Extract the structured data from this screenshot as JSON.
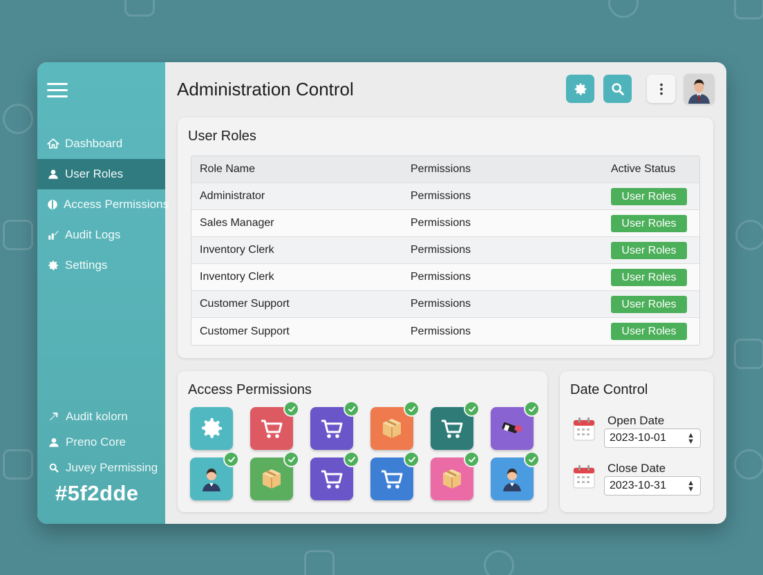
{
  "colors": {
    "sidebar": "#57b2b6",
    "sidebar_active": "#2f7b80",
    "accent_teal": "#4fb3bb",
    "status_green": "#4caf5a",
    "background": "#4f8a93"
  },
  "sidebar": {
    "menu_icon": "hamburger-icon",
    "items": [
      {
        "label": "Dashboard",
        "icon": "home-icon",
        "active": false
      },
      {
        "label": "User Roles",
        "icon": "user-icon",
        "active": true
      },
      {
        "label": "Access Permissions",
        "icon": "shield-icon",
        "active": false
      },
      {
        "label": "Audit Logs",
        "icon": "chart-icon",
        "active": false
      },
      {
        "label": "Settings",
        "icon": "gear-icon",
        "active": false
      }
    ],
    "bottom_items": [
      {
        "label": "Audit kolorn",
        "icon": "arrow-icon"
      },
      {
        "label": "Preno Core",
        "icon": "person-icon"
      },
      {
        "label": "Juvey Permissing",
        "icon": "search-icon"
      }
    ],
    "hex_label": "#5f2dde"
  },
  "header": {
    "title": "Administration Control",
    "buttons": [
      "gear-icon",
      "search-icon",
      "more-vertical-icon"
    ],
    "avatar": "user-avatar"
  },
  "user_roles": {
    "title": "User Roles",
    "columns": [
      "Role Name",
      "Permissions",
      "Active Status"
    ],
    "rows": [
      {
        "role": "Administrator",
        "permissions": "Permissions",
        "status": "User Roles"
      },
      {
        "role": "Sales Manager",
        "permissions": "Permissions",
        "status": "User Roles"
      },
      {
        "role": "Inventory Clerk",
        "permissions": "Permissions",
        "status": "User Roles"
      },
      {
        "role": "Inventory Clerk",
        "permissions": "Permissions",
        "status": "User Roles"
      },
      {
        "role": "Customer Support",
        "permissions": "Permissions",
        "status": "User Roles"
      },
      {
        "role": "Customer Support",
        "permissions": "Permissions",
        "status": "User Roles"
      }
    ]
  },
  "access_permissions": {
    "title": "Access Permissions",
    "tiles": [
      {
        "icon": "gear-icon",
        "color": "#4fb8c0",
        "checked": false
      },
      {
        "icon": "cart-icon",
        "color": "#de5a63",
        "checked": true
      },
      {
        "icon": "cart-icon",
        "color": "#6a55c9",
        "checked": true
      },
      {
        "icon": "box-icon",
        "color": "#ee7a4e",
        "checked": true
      },
      {
        "icon": "cart-icon",
        "color": "#2e7b78",
        "checked": true
      },
      {
        "icon": "tool-icon",
        "color": "#8a63d2",
        "checked": true
      },
      {
        "icon": "person-icon",
        "color": "#4fb8c0",
        "checked": true
      },
      {
        "icon": "box-icon",
        "color": "#5cae5f",
        "checked": true
      },
      {
        "icon": "cart-icon",
        "color": "#6a55c9",
        "checked": true
      },
      {
        "icon": "cart-icon",
        "color": "#3e7fd6",
        "checked": true
      },
      {
        "icon": "box-icon",
        "color": "#ea6ba6",
        "checked": true
      },
      {
        "icon": "person-icon",
        "color": "#4a9be0",
        "checked": true
      }
    ]
  },
  "date_control": {
    "title": "Date Control",
    "open": {
      "label": "Open Date",
      "value": "2023-10-01"
    },
    "close": {
      "label": "Close Date",
      "value": "2023-10-31"
    }
  }
}
